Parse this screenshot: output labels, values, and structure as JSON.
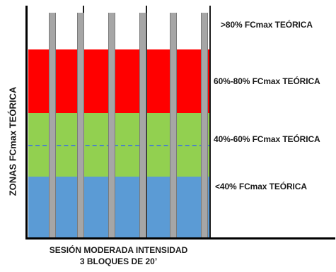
{
  "zones": [
    {
      "label": ">80% FCmax TEÓRICA",
      "color": "#ffffff"
    },
    {
      "label": "60%-80% FCmax TEÓRICA",
      "color": "#ff0000"
    },
    {
      "label": "40%-60% FCmax TEÓRICA",
      "color": "#92d050"
    },
    {
      "label": "<40% FCmax TEÓRICA",
      "color": "#5b9bd5"
    }
  ],
  "y_axis_title": "ZONAS FCmax TEÓRICA",
  "x_axis_title": {
    "line1": "SESIÓN MODERADA INTENSIDAD",
    "line2": "3 BLOQUES DE 20’"
  },
  "session": {
    "blocks": 3,
    "block_minutes": 20
  },
  "colors": {
    "bar": "#a6a6a6",
    "dashed_line": "#4d84c4"
  }
}
